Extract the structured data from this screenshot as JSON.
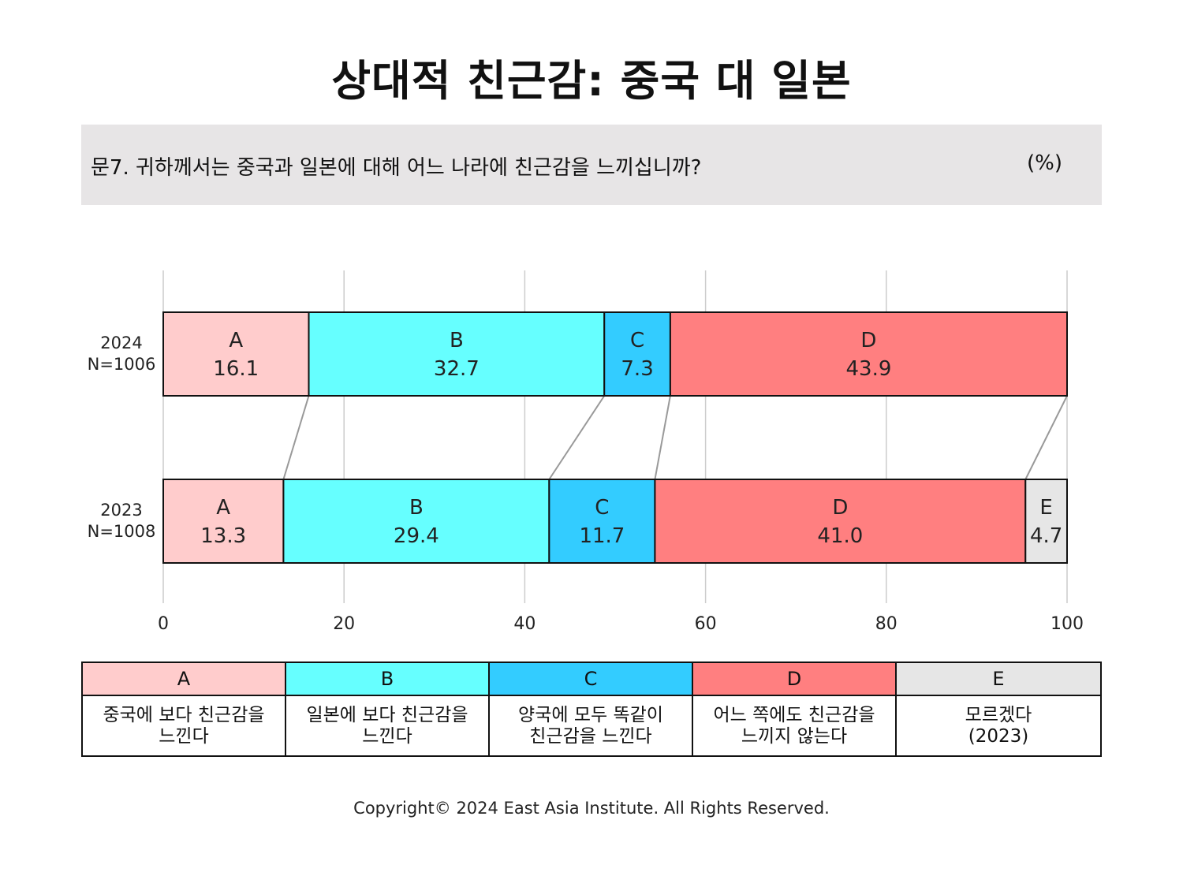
{
  "title": "상대적 친근감: 중국 대 일본",
  "question": {
    "text": "문7. 귀하께서는 중국과 일본에 대해 어느 나라에 친근감을 느끼십니까?",
    "unit": "(%)"
  },
  "chart_data": {
    "type": "bar",
    "orientation": "horizontal-stacked",
    "rows": [
      {
        "year": "2024",
        "n": "N=1006",
        "segments": [
          {
            "key": "A",
            "value": 16.1,
            "label": "16.1"
          },
          {
            "key": "B",
            "value": 32.7,
            "label": "32.7"
          },
          {
            "key": "C",
            "value": 7.3,
            "label": "7.3"
          },
          {
            "key": "D",
            "value": 43.9,
            "label": "43.9"
          }
        ]
      },
      {
        "year": "2023",
        "n": "N=1008",
        "segments": [
          {
            "key": "A",
            "value": 13.3,
            "label": "13.3"
          },
          {
            "key": "B",
            "value": 29.4,
            "label": "29.4"
          },
          {
            "key": "C",
            "value": 11.7,
            "label": "11.7"
          },
          {
            "key": "D",
            "value": 41.0,
            "label": "41.0"
          },
          {
            "key": "E",
            "value": 4.7,
            "label": "4.7"
          }
        ]
      }
    ],
    "xlim": [
      0,
      100
    ],
    "xticks": [
      "0",
      "20",
      "40",
      "60",
      "80",
      "100"
    ],
    "grid": true,
    "colors": {
      "A": "#ffcccc",
      "B": "#66ffff",
      "C": "#33ccff",
      "D": "#ff7f80",
      "E": "#e6e6e6"
    }
  },
  "legend": [
    {
      "key": "A",
      "desc": "중국에 보다 친근감을\n느낀다"
    },
    {
      "key": "B",
      "desc": "일본에 보다 친근감을\n느낀다"
    },
    {
      "key": "C",
      "desc": "양국에 모두 똑같이\n친근감을 느낀다"
    },
    {
      "key": "D",
      "desc": "어느 쪽에도 친근감을\n느끼지 않는다"
    },
    {
      "key": "E",
      "desc": "모르겠다\n(2023)"
    }
  ],
  "copyright": "Copyright© 2024 East Asia Institute. All Rights Reserved."
}
